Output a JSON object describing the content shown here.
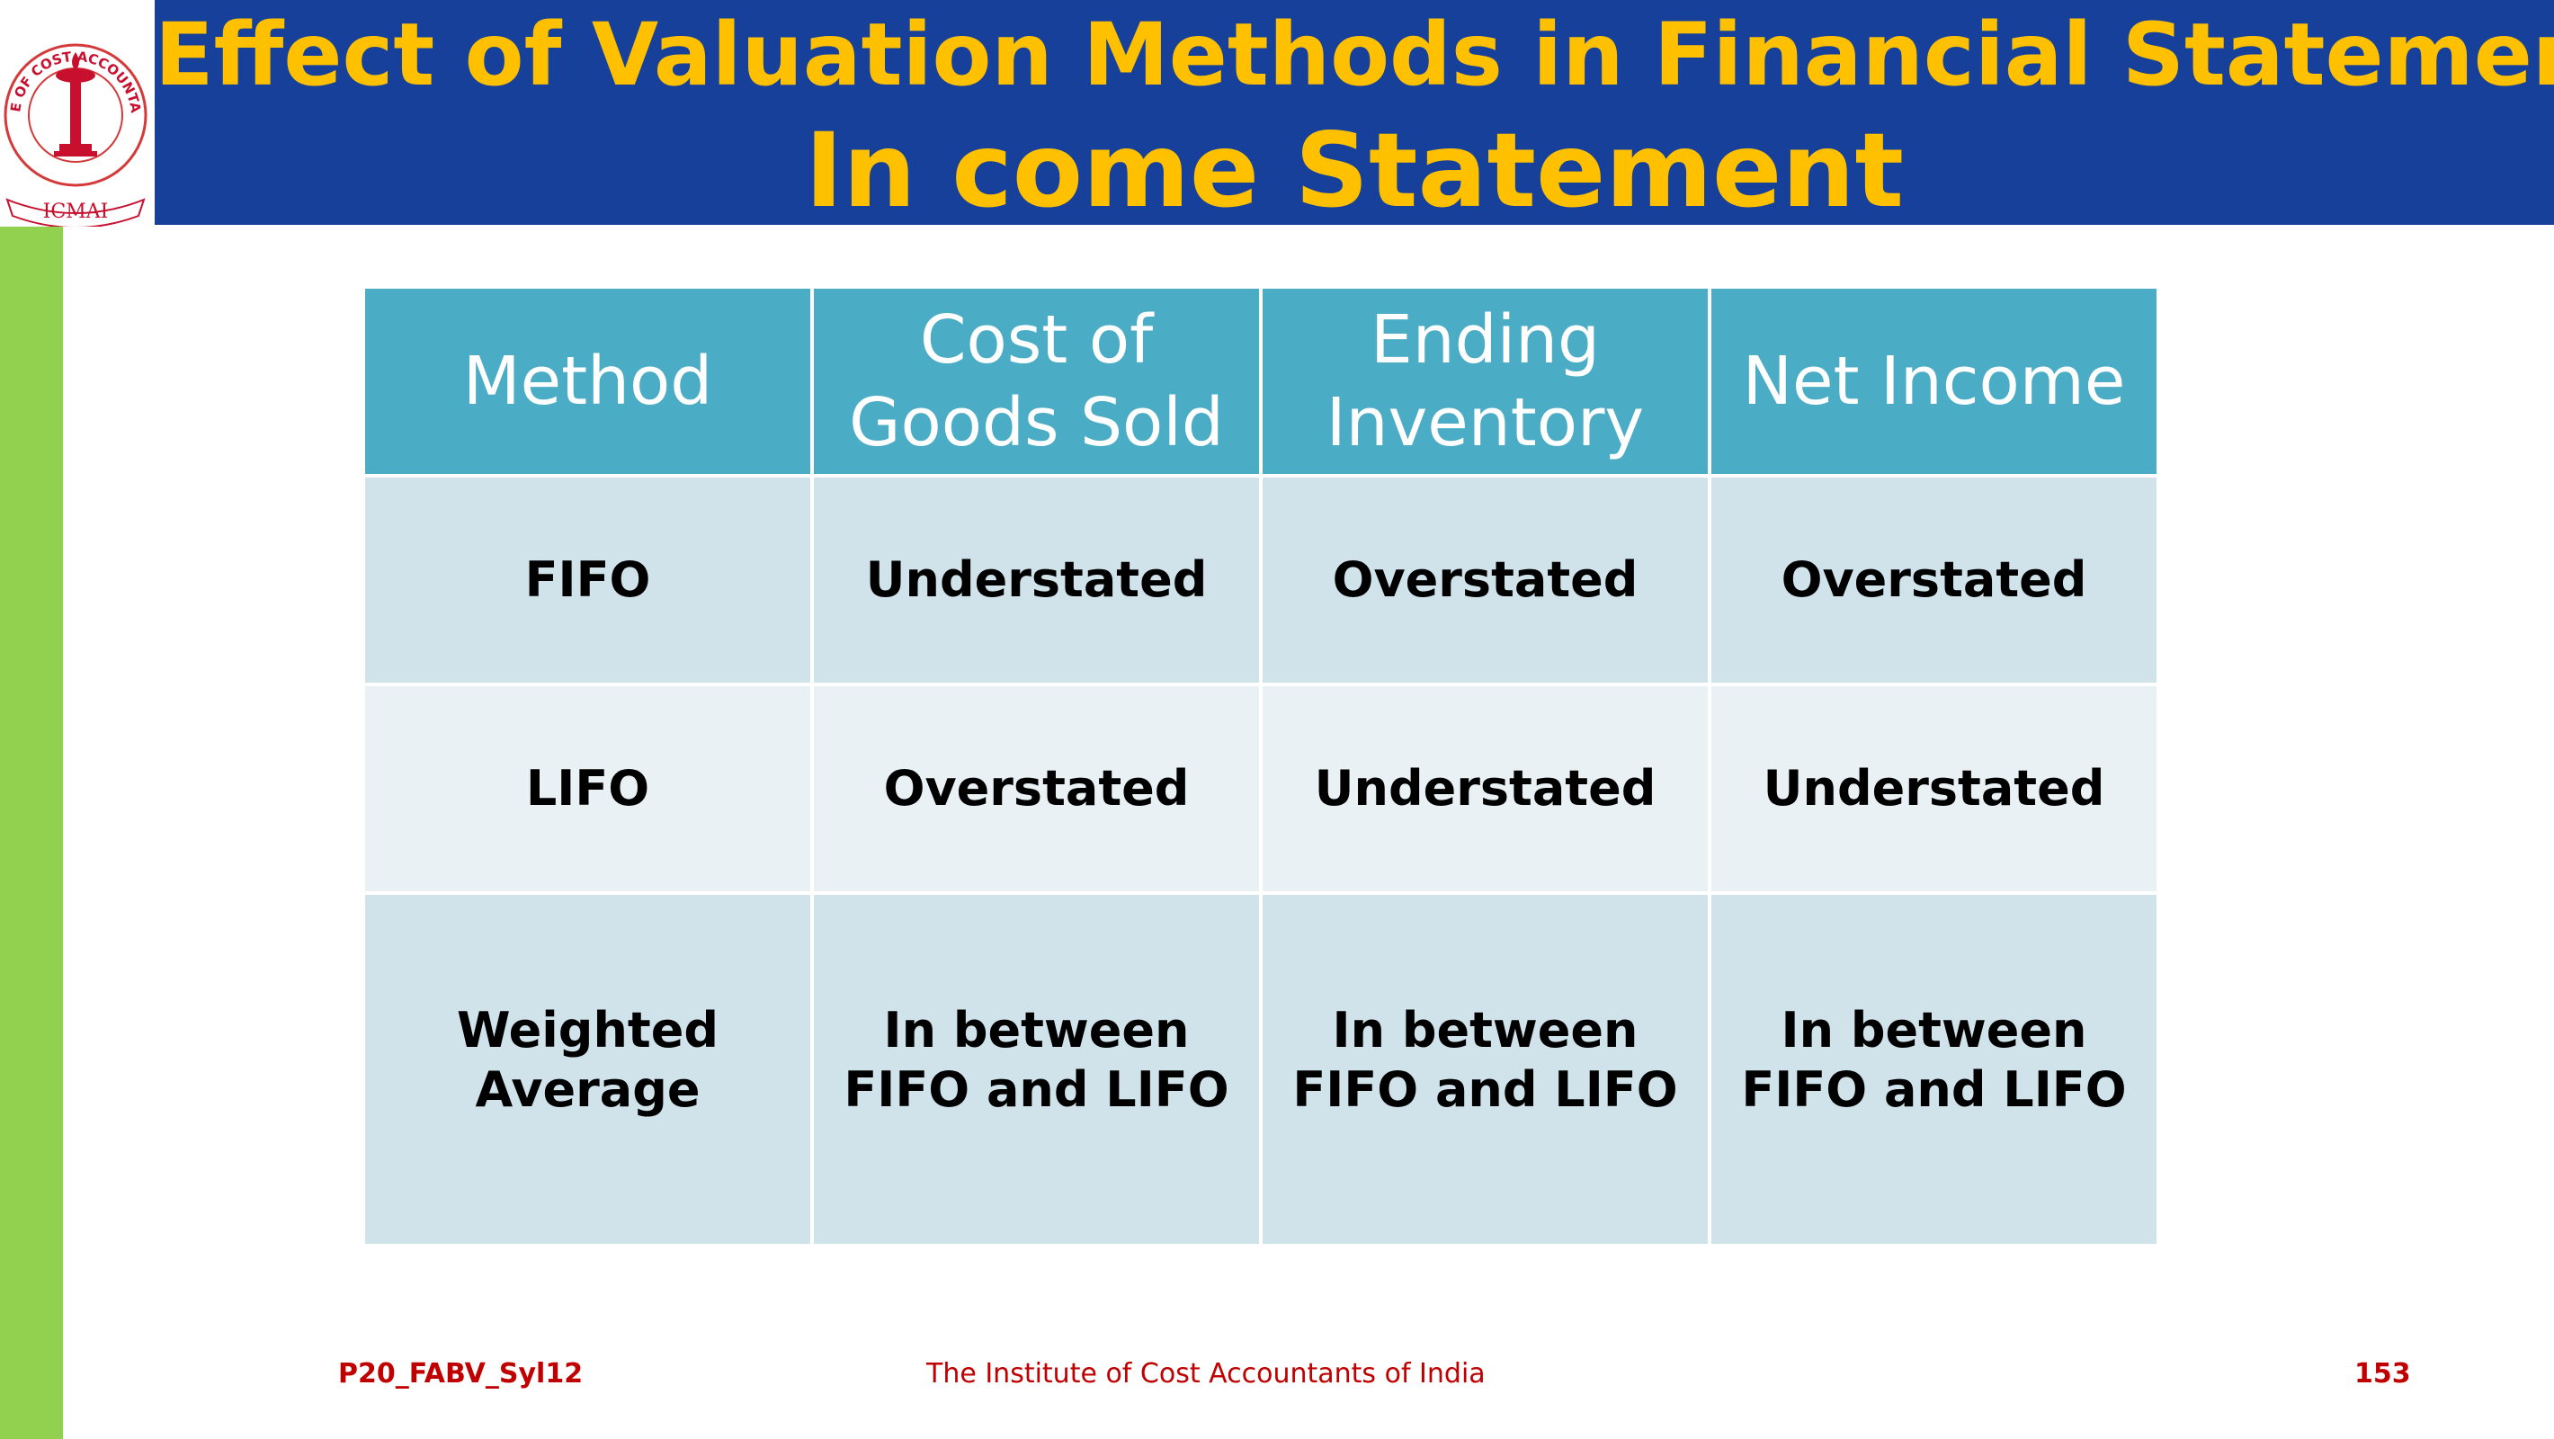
{
  "header": {
    "title_line1": "Effect of Valuation Methods in Financial Statements-",
    "title_line2": "In come Statement",
    "background_color": "#16409a",
    "title_color": "#ffc000"
  },
  "logo": {
    "icon": "institute-seal-icon",
    "text": "THE INSTITUTE OF COST ACCOUNTANTS OF INDIA",
    "mark": "ICMAI"
  },
  "table": {
    "headers": [
      "Method",
      "Cost of Goods Sold",
      "Ending Inventory",
      "Net Income"
    ],
    "rows": [
      [
        "FIFO",
        "Understated",
        "Overstated",
        "Overstated"
      ],
      [
        "LIFO",
        "Overstated",
        "Understated",
        "Understated"
      ],
      [
        "Weighted Average",
        "In between FIFO and LIFO",
        "In between FIFO and LIFO",
        "In between FIFO and LIFO"
      ]
    ],
    "header_color": "#4bacc6",
    "row_color_a": "#d0e2ea",
    "row_color_b": "#e9f1f5"
  },
  "footer": {
    "left": "P20_FABV_Syl12",
    "center": "The Institute of Cost Accountants of India",
    "page_number": "153",
    "text_color": "#c00000"
  },
  "accent_bar_color": "#92d050"
}
